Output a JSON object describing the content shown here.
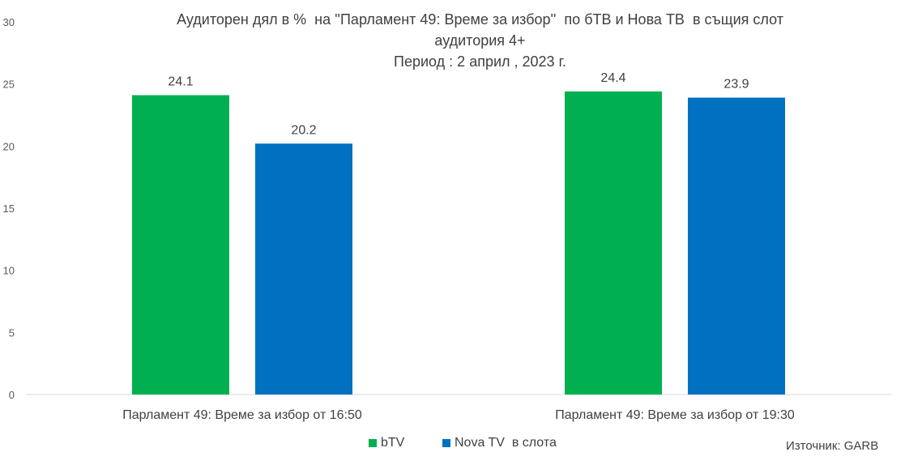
{
  "chart_data": {
    "type": "bar",
    "title_lines": [
      "Аудиторен дял в %  на ''Парламент 49: Време за избор''  по бТВ и Нова ТВ  в същия слот",
      "аудитория 4+",
      "Период : 2 април , 2023 г."
    ],
    "categories": [
      "Парламент 49: Време за избор от 16:50",
      "Парламент 49: Време за избор от 19:30"
    ],
    "series": [
      {
        "name": "bTV",
        "values": [
          24.1,
          24.4
        ],
        "labels": [
          "24.1",
          "24.4"
        ],
        "color": "#00B050"
      },
      {
        "name": "Nova TV  в слота",
        "values": [
          20.2,
          23.9
        ],
        "labels": [
          "20.2",
          "23.9"
        ],
        "color": "#0070C0"
      }
    ],
    "ylim": [
      0,
      30
    ],
    "yticks": [
      "0",
      "5",
      "10",
      "15",
      "20",
      "25",
      "30"
    ],
    "grid": false,
    "legend_position": "bottom",
    "source": "Източник: GARB"
  }
}
